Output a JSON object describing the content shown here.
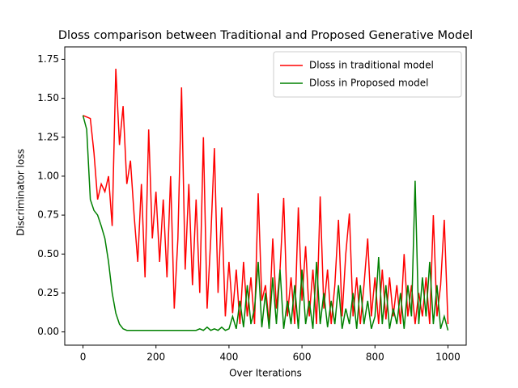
{
  "chart_data": {
    "type": "line",
    "title": "Dloss comparison between Traditional and Proposed Generative Model",
    "xlabel": "Over Iterations",
    "ylabel": "Discriminator loss",
    "x": [
      0,
      10,
      20,
      30,
      40,
      50,
      60,
      70,
      80,
      90,
      100,
      110,
      120,
      130,
      140,
      150,
      160,
      170,
      180,
      190,
      200,
      210,
      220,
      230,
      240,
      250,
      260,
      270,
      280,
      290,
      300,
      310,
      320,
      330,
      340,
      350,
      360,
      370,
      380,
      390,
      400,
      410,
      420,
      430,
      440,
      450,
      460,
      470,
      480,
      490,
      500,
      510,
      520,
      530,
      540,
      550,
      560,
      570,
      580,
      590,
      600,
      610,
      620,
      630,
      640,
      650,
      660,
      670,
      680,
      690,
      700,
      710,
      720,
      730,
      740,
      750,
      760,
      770,
      780,
      790,
      800,
      810,
      820,
      830,
      840,
      850,
      860,
      870,
      880,
      890,
      900,
      910,
      920,
      930,
      940,
      950,
      960,
      970,
      980,
      990,
      1000
    ],
    "series": [
      {
        "name": "Dloss in traditional model",
        "color": "#ff0000",
        "values": [
          1.39,
          1.38,
          1.37,
          1.15,
          0.85,
          0.95,
          0.9,
          1.0,
          0.68,
          1.69,
          1.2,
          1.45,
          0.95,
          1.1,
          0.75,
          0.45,
          0.95,
          0.35,
          1.3,
          0.6,
          0.9,
          0.45,
          0.85,
          0.35,
          1.0,
          0.15,
          0.6,
          1.57,
          0.4,
          0.95,
          0.3,
          0.85,
          0.25,
          1.25,
          0.15,
          0.6,
          1.18,
          0.25,
          0.8,
          0.1,
          0.45,
          0.12,
          0.4,
          0.05,
          0.45,
          0.1,
          0.35,
          0.05,
          0.89,
          0.2,
          0.3,
          0.05,
          0.6,
          0.15,
          0.4,
          0.86,
          0.1,
          0.35,
          0.05,
          0.8,
          0.2,
          0.55,
          0.1,
          0.4,
          0.05,
          0.87,
          0.15,
          0.4,
          0.05,
          0.3,
          0.72,
          0.1,
          0.5,
          0.76,
          0.1,
          0.35,
          0.05,
          0.3,
          0.6,
          0.1,
          0.35,
          0.05,
          0.4,
          0.08,
          0.35,
          0.1,
          0.3,
          0.05,
          0.5,
          0.1,
          0.3,
          0.05,
          0.25,
          0.1,
          0.35,
          0.05,
          0.75,
          0.1,
          0.3,
          0.72,
          0.05
        ]
      },
      {
        "name": "Dloss in Proposed model",
        "color": "#008000",
        "values": [
          1.39,
          1.3,
          0.85,
          0.78,
          0.75,
          0.68,
          0.6,
          0.45,
          0.25,
          0.12,
          0.05,
          0.02,
          0.01,
          0.01,
          0.01,
          0.01,
          0.01,
          0.01,
          0.01,
          0.01,
          0.01,
          0.01,
          0.01,
          0.01,
          0.01,
          0.01,
          0.01,
          0.01,
          0.01,
          0.01,
          0.01,
          0.01,
          0.02,
          0.01,
          0.03,
          0.01,
          0.02,
          0.01,
          0.03,
          0.01,
          0.02,
          0.1,
          0.02,
          0.2,
          0.03,
          0.3,
          0.05,
          0.15,
          0.45,
          0.03,
          0.25,
          0.02,
          0.35,
          0.05,
          0.4,
          0.02,
          0.2,
          0.05,
          0.3,
          0.02,
          0.4,
          0.05,
          0.2,
          0.02,
          0.45,
          0.05,
          0.25,
          0.03,
          0.2,
          0.05,
          0.3,
          0.02,
          0.15,
          0.05,
          0.25,
          0.02,
          0.3,
          0.05,
          0.2,
          0.02,
          0.1,
          0.48,
          0.05,
          0.3,
          0.02,
          0.15,
          0.05,
          0.25,
          0.02,
          0.3,
          0.1,
          0.97,
          0.05,
          0.35,
          0.1,
          0.45,
          0.05,
          0.3,
          0.02,
          0.1,
          0.01
        ]
      }
    ],
    "xlim": [
      -50,
      1050
    ],
    "ylim": [
      -0.085,
      1.83
    ],
    "xticks": [
      0,
      200,
      400,
      600,
      800,
      1000
    ],
    "yticks": [
      {
        "value": 0,
        "label": "0.00"
      },
      0.25,
      {
        "value": 0.5,
        "label": "0.50"
      },
      0.75,
      {
        "value": 1,
        "label": "1.00"
      },
      1.25,
      {
        "value": 1.5,
        "label": "1.50"
      },
      1.75
    ],
    "legend": "upper right"
  }
}
